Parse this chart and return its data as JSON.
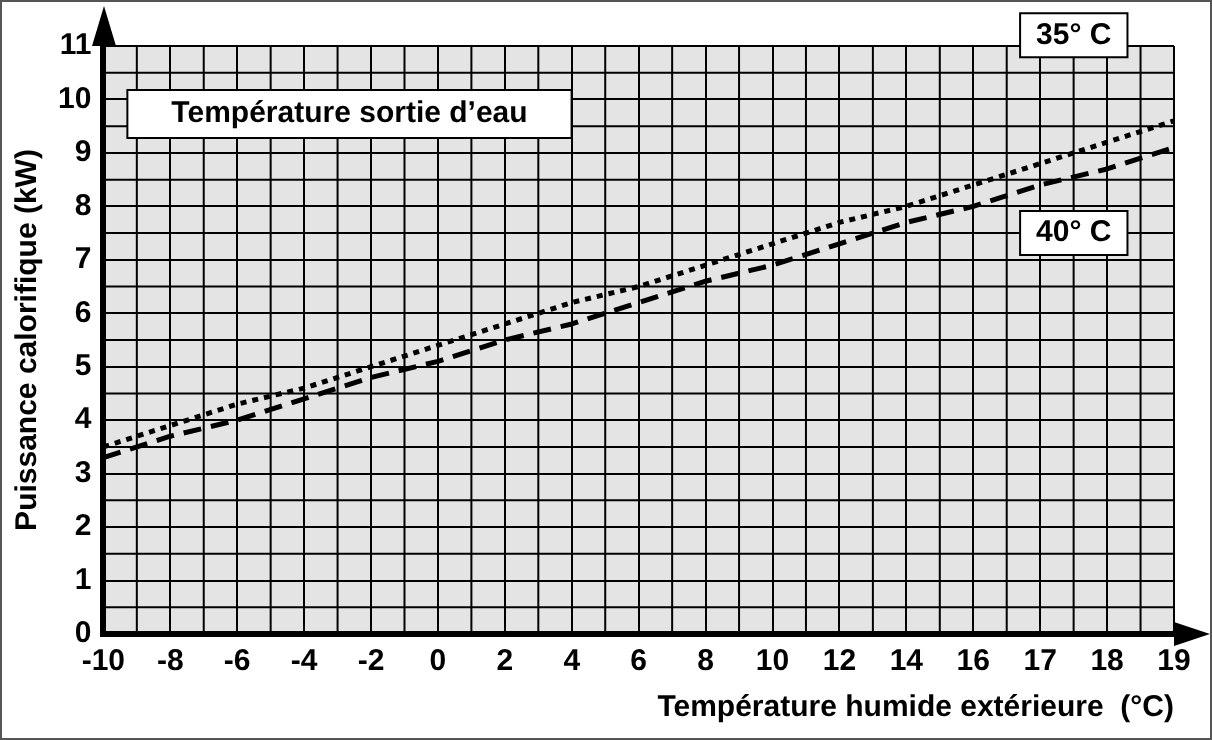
{
  "chart_data": {
    "type": "line",
    "legend_title": "Température sortie d’eau",
    "xlabel": "Température humide extérieure  (°C)",
    "ylabel": "Puissance calorifique (kW)",
    "categories": [
      "-10",
      "-8",
      "-6",
      "-4",
      "-2",
      "0",
      "2",
      "4",
      "6",
      "8",
      "10",
      "12",
      "14",
      "16",
      "17",
      "18",
      "19"
    ],
    "series": [
      {
        "name": "35° C",
        "color": "#000000",
        "line_style": "dotted",
        "values": [
          3.5,
          3.9,
          4.3,
          4.6,
          5.0,
          5.4,
          5.8,
          6.2,
          6.5,
          6.9,
          7.3,
          7.7,
          8.0,
          8.4,
          8.8,
          9.2,
          9.6
        ]
      },
      {
        "name": "40° C",
        "color": "#000000",
        "line_style": "dashed",
        "values": [
          3.3,
          3.7,
          4.0,
          4.4,
          4.8,
          5.1,
          5.5,
          5.8,
          6.2,
          6.6,
          6.9,
          7.3,
          7.7,
          8.0,
          8.4,
          8.7,
          9.1
        ]
      }
    ],
    "ylim": [
      0,
      11
    ],
    "yticks": [
      0,
      1,
      2,
      3,
      4,
      5,
      6,
      7,
      8,
      9,
      10,
      11
    ],
    "grid": true,
    "legend": false,
    "marker": "none"
  }
}
